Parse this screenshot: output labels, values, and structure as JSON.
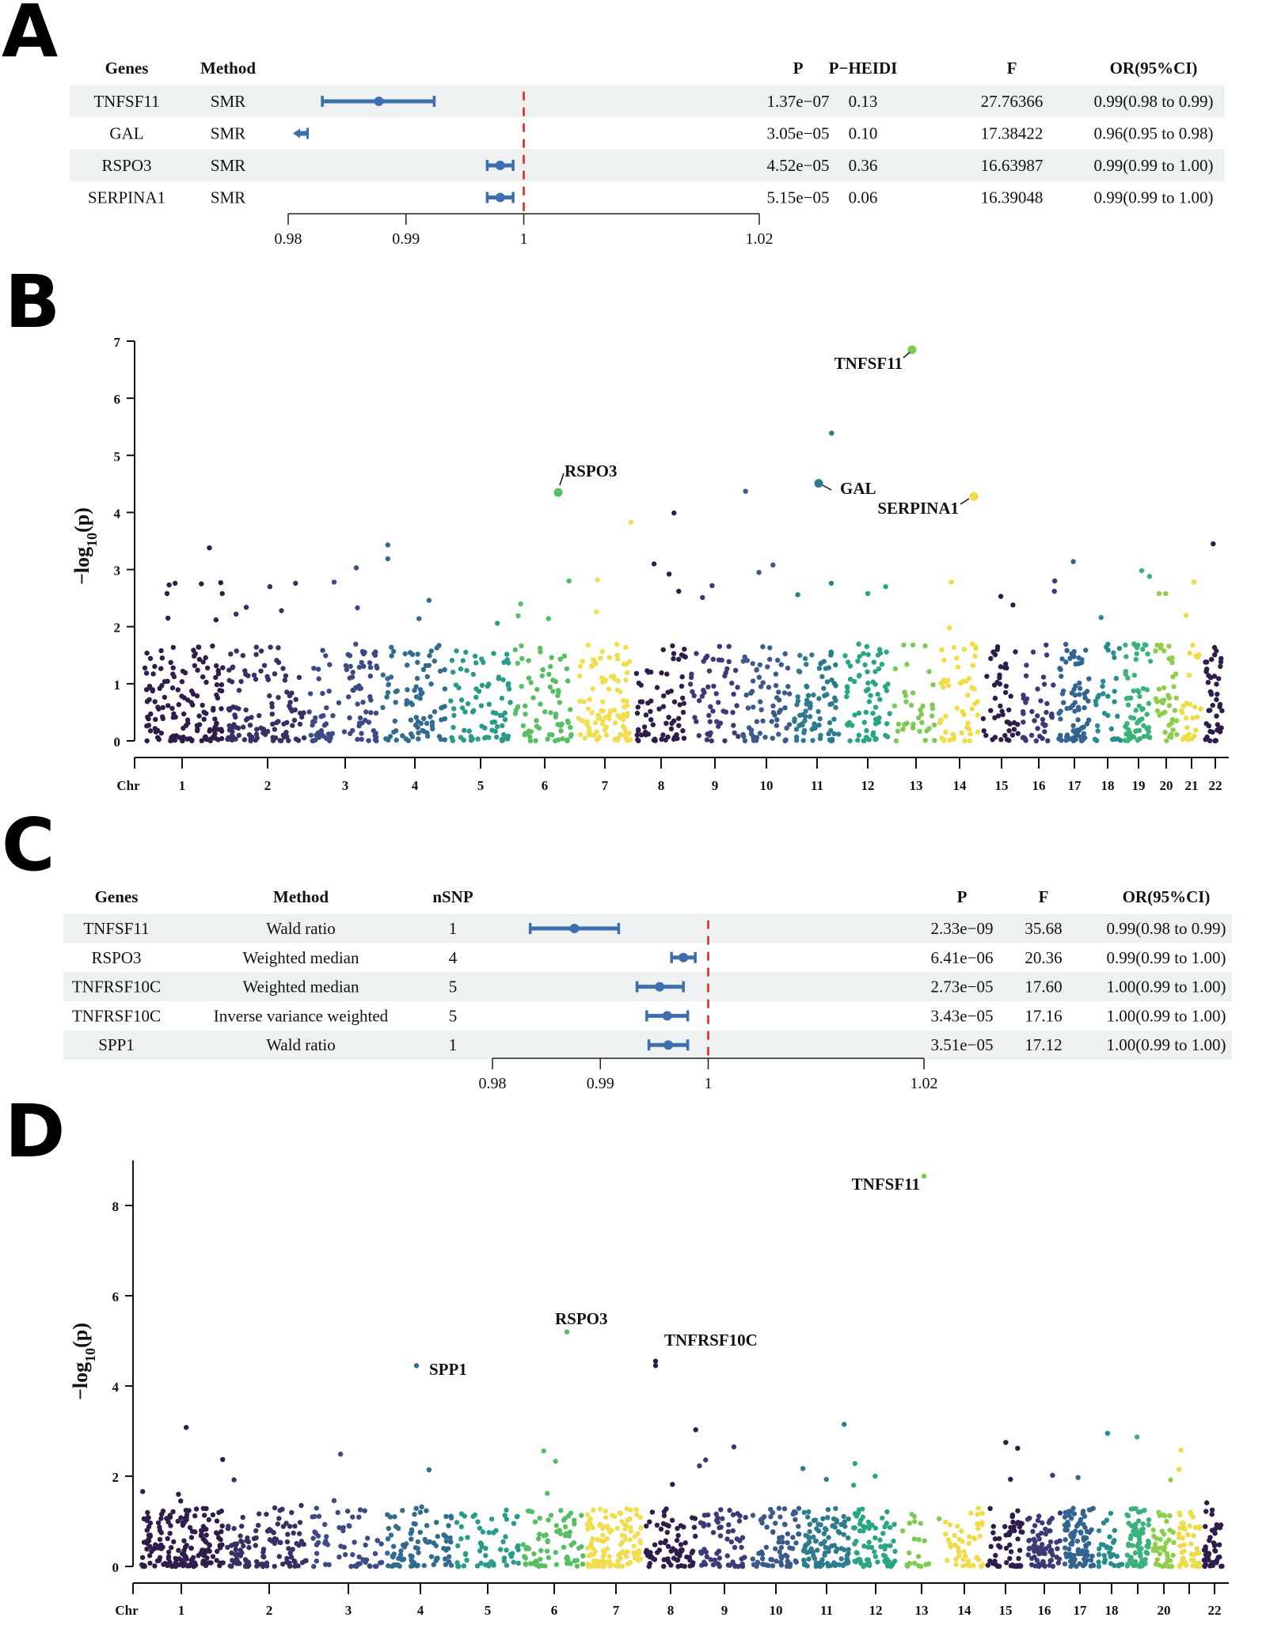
{
  "figure": {
    "panels": [
      "A",
      "B",
      "C",
      "D"
    ]
  },
  "chart_data": [
    {
      "id": "A",
      "type": "table",
      "subtype": "forest-plot",
      "columns": [
        "Genes",
        "Method",
        "P",
        "P−HEIDI",
        "F",
        "OR(95%CI)"
      ],
      "rows": [
        {
          "gene": "TNFSF11",
          "method": "SMR",
          "p": "1.37e−07",
          "p_heidi": "0.13",
          "f": "27.76366",
          "or_text": "0.99(0.98 to 0.99)",
          "or": 0.9877,
          "lo": 0.9829,
          "hi": 0.9924,
          "truncated_left": false
        },
        {
          "gene": "GAL",
          "method": "SMR",
          "p": "3.05e−05",
          "p_heidi": "0.10",
          "f": "17.38422",
          "or_text": "0.96(0.95 to 0.98)",
          "or": 0.9808,
          "lo": 0.9805,
          "hi": 0.9812,
          "truncated_left": true
        },
        {
          "gene": "RSPO3",
          "method": "SMR",
          "p": "4.52e−05",
          "p_heidi": "0.36",
          "f": "16.63987",
          "or_text": "0.99(0.99 to 1.00)",
          "or": 0.998,
          "lo": 0.9969,
          "hi": 0.9991,
          "truncated_left": false
        },
        {
          "gene": "SERPINA1",
          "method": "SMR",
          "p": "5.15e−05",
          "p_heidi": "0.06",
          "f": "16.39048",
          "or_text": "0.99(0.99 to 1.00)",
          "or": 0.998,
          "lo": 0.9969,
          "hi": 0.9991,
          "truncated_left": false
        }
      ],
      "xaxis": {
        "ticks": [
          0.98,
          0.99,
          1,
          1.02
        ],
        "tick_labels": [
          "0.98",
          "0.99",
          "1",
          "1.02"
        ],
        "range": [
          0.98,
          1.02
        ]
      },
      "reference_line": 1,
      "colors": {
        "point": "#3f6ead",
        "reference": "#e02020",
        "row_shade": "#eef1f1"
      }
    },
    {
      "id": "B",
      "type": "scatter",
      "subtype": "manhattan",
      "ylabel": "−log₁₀(p)",
      "ylabel_main": "−log",
      "ylabel_sub": "10",
      "ylabel_tail": "(p)",
      "xlabel": "Chr",
      "ylim": [
        0,
        7
      ],
      "yticks": [
        0,
        1,
        2,
        3,
        4,
        5,
        6,
        7
      ],
      "chromosomes": [
        "1",
        "2",
        "3",
        "4",
        "5",
        "6",
        "7",
        "8",
        "9",
        "10",
        "11",
        "12",
        "13",
        "14",
        "15",
        "16",
        "17",
        "18",
        "19",
        "20",
        "21",
        "22"
      ],
      "xtick_labels": [
        "1",
        "2",
        "3",
        "4",
        "5",
        "6",
        "7",
        "8",
        "9",
        "10",
        "11",
        "12",
        "13",
        "14",
        "15",
        "16",
        "17",
        "18",
        "19",
        "20",
        "21",
        "22"
      ],
      "background_points_per_chr": [
        150,
        120,
        95,
        85,
        80,
        70,
        95,
        70,
        55,
        65,
        80,
        70,
        35,
        50,
        45,
        40,
        80,
        30,
        65,
        40,
        25,
        45
      ],
      "background_max": 1.7,
      "outliers": [
        {
          "chr": 1,
          "y": 2.77
        },
        {
          "chr": 1,
          "y": 2.76
        },
        {
          "chr": 1,
          "y": 2.58
        },
        {
          "chr": 1,
          "y": 2.75
        },
        {
          "chr": 1,
          "y": 2.73
        },
        {
          "chr": 1,
          "y": 3.38
        },
        {
          "chr": 1,
          "y": 2.58
        },
        {
          "chr": 1,
          "y": 2.12
        },
        {
          "chr": 1,
          "y": 2.15
        },
        {
          "chr": 2,
          "y": 2.76
        },
        {
          "chr": 2,
          "y": 2.7
        },
        {
          "chr": 2,
          "y": 2.34
        },
        {
          "chr": 2,
          "y": 2.28
        },
        {
          "chr": 2,
          "y": 2.22
        },
        {
          "chr": 3,
          "y": 3.03
        },
        {
          "chr": 3,
          "y": 2.78
        },
        {
          "chr": 3,
          "y": 2.33
        },
        {
          "chr": 4,
          "y": 3.19
        },
        {
          "chr": 4,
          "y": 3.43
        },
        {
          "chr": 4,
          "y": 2.46
        },
        {
          "chr": 4,
          "y": 2.14
        },
        {
          "chr": 5,
          "y": 2.06
        },
        {
          "chr": 6,
          "y": 2.8
        },
        {
          "chr": 6,
          "y": 2.4
        },
        {
          "chr": 6,
          "y": 2.19
        },
        {
          "chr": 6,
          "y": 2.14
        },
        {
          "chr": 7,
          "y": 3.83
        },
        {
          "chr": 7,
          "y": 2.82
        },
        {
          "chr": 7,
          "y": 2.26
        },
        {
          "chr": 8,
          "y": 3.99
        },
        {
          "chr": 8,
          "y": 3.1
        },
        {
          "chr": 8,
          "y": 2.92
        },
        {
          "chr": 8,
          "y": 2.62
        },
        {
          "chr": 9,
          "y": 2.72
        },
        {
          "chr": 9,
          "y": 2.51
        },
        {
          "chr": 10,
          "y": 4.37
        },
        {
          "chr": 10,
          "y": 3.08
        },
        {
          "chr": 10,
          "y": 2.95
        },
        {
          "chr": 11,
          "y": 5.39
        },
        {
          "chr": 11,
          "y": 2.76
        },
        {
          "chr": 11,
          "y": 2.56
        },
        {
          "chr": 12,
          "y": 2.7
        },
        {
          "chr": 12,
          "y": 2.58
        },
        {
          "chr": 14,
          "y": 2.78
        },
        {
          "chr": 14,
          "y": 1.98
        },
        {
          "chr": 15,
          "y": 2.53
        },
        {
          "chr": 15,
          "y": 2.38
        },
        {
          "chr": 16,
          "y": 2.8
        },
        {
          "chr": 16,
          "y": 2.62
        },
        {
          "chr": 17,
          "y": 3.14
        },
        {
          "chr": 18,
          "y": 2.16
        },
        {
          "chr": 19,
          "y": 2.98
        },
        {
          "chr": 19,
          "y": 2.88
        },
        {
          "chr": 20,
          "y": 2.58
        },
        {
          "chr": 20,
          "y": 2.58
        },
        {
          "chr": 21,
          "y": 2.78
        },
        {
          "chr": 21,
          "y": 2.2
        },
        {
          "chr": 22,
          "y": 3.45
        }
      ],
      "highlights": [
        {
          "gene": "TNFSF11",
          "chr": 13,
          "y": 6.85,
          "label_side": "left"
        },
        {
          "gene": "RSPO3",
          "chr": 6,
          "y": 4.35,
          "label_side": "up-right"
        },
        {
          "gene": "GAL",
          "chr": 11,
          "y": 4.51,
          "label_side": "right"
        },
        {
          "gene": "SERPINA1",
          "chr": 14,
          "y": 4.28,
          "label_side": "left"
        }
      ],
      "palette": [
        "#2e1a4b",
        "#352a63",
        "#3b3a77",
        "#3b4d85",
        "#375e8b",
        "#326d8d",
        "#2e7b8e",
        "#2a898d",
        "#27978a",
        "#2aa582",
        "#3bb376",
        "#57bf66",
        "#79c955",
        "#9cd043",
        "#c3d63a",
        "#e6dc3d"
      ]
    },
    {
      "id": "C",
      "type": "table",
      "subtype": "forest-plot",
      "columns": [
        "Genes",
        "Method",
        "nSNP",
        "P",
        "F",
        "OR(95%CI)"
      ],
      "rows": [
        {
          "gene": "TNFSF11",
          "method": "Wald ratio",
          "nsnp": "1",
          "p": "2.33e−09",
          "f": "35.68",
          "or_text": "0.99(0.98 to 0.99)",
          "or": 0.9876,
          "lo": 0.9835,
          "hi": 0.9917
        },
        {
          "gene": "RSPO3",
          "method": "Weighted median",
          "nsnp": "4",
          "p": "6.41e−06",
          "f": "20.36",
          "or_text": "0.99(0.99 to 1.00)",
          "or": 0.9977,
          "lo": 0.9966,
          "hi": 0.9988
        },
        {
          "gene": "TNFRSF10C",
          "method": "Weighted median",
          "nsnp": "5",
          "p": "2.73e−05",
          "f": "17.60",
          "or_text": "1.00(0.99 to 1.00)",
          "or": 0.9955,
          "lo": 0.9934,
          "hi": 0.9977
        },
        {
          "gene": "TNFRSF10C",
          "method": "Inverse variance weighted",
          "nsnp": "5",
          "p": "3.43e−05",
          "f": "17.16",
          "or_text": "1.00(0.99 to 1.00)",
          "or": 0.9962,
          "lo": 0.9943,
          "hi": 0.9981
        },
        {
          "gene": "SPP1",
          "method": "Wald ratio",
          "nsnp": "1",
          "p": "3.51e−05",
          "f": "17.12",
          "or_text": "1.00(0.99 to 1.00)",
          "or": 0.9963,
          "lo": 0.9945,
          "hi": 0.9981
        }
      ],
      "xaxis": {
        "ticks": [
          0.98,
          0.99,
          1,
          1.02
        ],
        "tick_labels": [
          "0.98",
          "0.99",
          "1",
          "1.02"
        ],
        "range": [
          0.98,
          1.02
        ]
      },
      "reference_line": 1,
      "colors": {
        "point": "#3f6ead",
        "reference": "#e02020",
        "row_shade": "#eef1f1"
      }
    },
    {
      "id": "D",
      "type": "scatter",
      "subtype": "manhattan",
      "ylabel_main": "−log",
      "ylabel_sub": "10",
      "ylabel_tail": "(p)",
      "xlabel": "Chr",
      "ylim": [
        0,
        9
      ],
      "yticks": [
        0,
        2,
        4,
        6,
        8
      ],
      "chromosomes": [
        "1",
        "2",
        "3",
        "4",
        "5",
        "6",
        "7",
        "8",
        "9",
        "10",
        "11",
        "12",
        "13",
        "14",
        "15",
        "16",
        "17",
        "18",
        "19",
        "20",
        "21",
        "22"
      ],
      "xtick_labels": [
        "1",
        "2",
        "3",
        "4",
        "5",
        "6",
        "7",
        "8",
        "9",
        "10",
        "11",
        "12",
        "13",
        "14",
        "15",
        "16",
        "17",
        "18",
        "",
        "20",
        "",
        "22"
      ],
      "background_points_per_chr": [
        170,
        110,
        60,
        90,
        60,
        70,
        120,
        70,
        60,
        70,
        100,
        70,
        20,
        45,
        55,
        70,
        90,
        30,
        75,
        40,
        45,
        45
      ],
      "background_max": 1.3,
      "outliers": [
        {
          "chr": 1,
          "y": 3.08
        },
        {
          "chr": 1,
          "y": 2.37
        },
        {
          "chr": 1,
          "y": 1.66
        },
        {
          "chr": 1,
          "y": 1.6
        },
        {
          "chr": 1,
          "y": 1.45
        },
        {
          "chr": 2,
          "y": 1.92
        },
        {
          "chr": 2,
          "y": 1.35
        },
        {
          "chr": 3,
          "y": 2.49
        },
        {
          "chr": 3,
          "y": 1.46
        },
        {
          "chr": 4,
          "y": 2.14
        },
        {
          "chr": 4,
          "y": 1.32
        },
        {
          "chr": 6,
          "y": 2.33
        },
        {
          "chr": 6,
          "y": 2.56
        },
        {
          "chr": 6,
          "y": 1.62
        },
        {
          "chr": 8,
          "y": 3.03
        },
        {
          "chr": 8,
          "y": 1.82
        },
        {
          "chr": 9,
          "y": 2.65
        },
        {
          "chr": 9,
          "y": 2.36
        },
        {
          "chr": 9,
          "y": 2.23
        },
        {
          "chr": 11,
          "y": 3.15
        },
        {
          "chr": 11,
          "y": 2.17
        },
        {
          "chr": 11,
          "y": 1.93
        },
        {
          "chr": 12,
          "y": 2.28
        },
        {
          "chr": 12,
          "y": 2.0
        },
        {
          "chr": 12,
          "y": 1.8
        },
        {
          "chr": 15,
          "y": 2.75
        },
        {
          "chr": 15,
          "y": 2.62
        },
        {
          "chr": 15,
          "y": 1.93
        },
        {
          "chr": 16,
          "y": 2.02
        },
        {
          "chr": 17,
          "y": 1.97
        },
        {
          "chr": 18,
          "y": 2.95
        },
        {
          "chr": 19,
          "y": 2.87
        },
        {
          "chr": 20,
          "y": 1.92
        },
        {
          "chr": 21,
          "y": 2.58
        },
        {
          "chr": 21,
          "y": 2.15
        },
        {
          "chr": 22,
          "y": 1.41
        }
      ],
      "highlights": [
        {
          "gene": "TNFSF11",
          "chr": 13,
          "y": 8.65,
          "label_side": "left"
        },
        {
          "gene": "RSPO3",
          "chr": 6,
          "y": 5.2,
          "label_side": "above"
        },
        {
          "gene": "TNFRSF10C",
          "chr": 8,
          "y": 4.55,
          "label_side": "above-right",
          "extra_y": 4.45
        },
        {
          "gene": "SPP1",
          "chr": 4,
          "y": 4.45,
          "label_side": "right"
        }
      ],
      "palette": [
        "#2e1a4b",
        "#352a63",
        "#3b3a77",
        "#3b4d85",
        "#375e8b",
        "#326d8d",
        "#2e7b8e",
        "#2a898d",
        "#27978a",
        "#2aa582",
        "#3bb376",
        "#57bf66",
        "#79c955",
        "#9cd043",
        "#c3d63a",
        "#e6dc3d"
      ]
    }
  ]
}
